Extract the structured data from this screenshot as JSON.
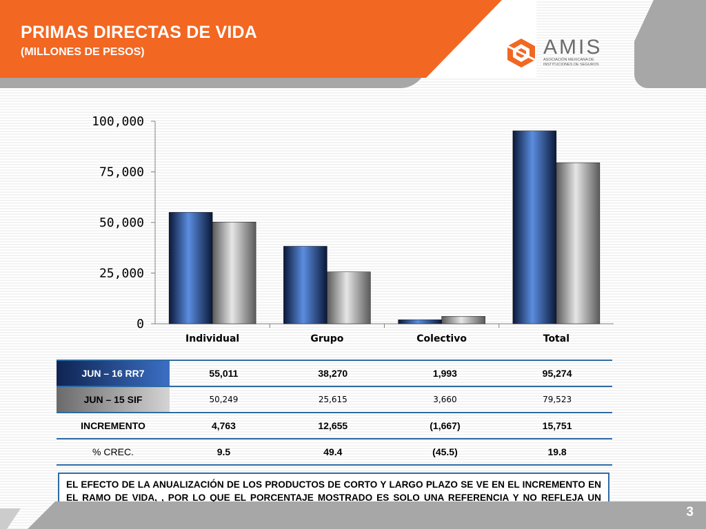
{
  "header": {
    "title": "PRIMAS DIRECTAS DE VIDA",
    "subtitle": "(MILLONES DE PESOS)"
  },
  "logo": {
    "name": "AMIS",
    "tagline": "ASOCIACIÓN MEXICANA DE INSTITUCIONES DE SEGUROS",
    "colors": {
      "orange": "#f26722",
      "gray": "#6b6b6b"
    }
  },
  "chart_data": {
    "type": "bar",
    "categories": [
      "Individual",
      "Grupo",
      "Colectivo",
      "Total"
    ],
    "series": [
      {
        "name": "JUN – 16 RR7",
        "values": [
          55011,
          38270,
          1993,
          95274
        ],
        "color": "#1d3f7a"
      },
      {
        "name": "JUN – 15 SIF",
        "values": [
          50249,
          25615,
          3660,
          79523
        ],
        "color": "#9a9a9a"
      }
    ],
    "yticks": [
      "0",
      "25,000",
      "50,000",
      "75,000",
      "100,000"
    ],
    "ylim": [
      0,
      100000
    ],
    "grid": false
  },
  "table": {
    "rows": [
      {
        "label": "JUN – 16 RR7",
        "values": [
          "55,011",
          "38,270",
          "1,993",
          "95,274"
        ]
      },
      {
        "label": "JUN – 15 SIF",
        "values": [
          "50,249",
          "25,615",
          "3,660",
          "79,523"
        ]
      },
      {
        "label": "INCREMENTO",
        "values": [
          "4,763",
          "12,655",
          "(1,667)",
          "15,751"
        ]
      },
      {
        "label": "% CREC.",
        "values": [
          "9.5",
          "49.4",
          "(45.5)",
          "19.8"
        ]
      }
    ]
  },
  "note": "EL EFECTO DE LA ANUALIZACIÓN DE LOS PRODUCTOS DE CORTO Y LARGO PLAZO SE VE EN EL INCREMENTO EN EL RAMO DE VIDA, , POR LO QUE EL PORCENTAJE MOSTRADO ES SOLO UNA REFERENCIA Y NO REFLEJA UN CRECIMIENTO REAL.",
  "page_number": "3"
}
